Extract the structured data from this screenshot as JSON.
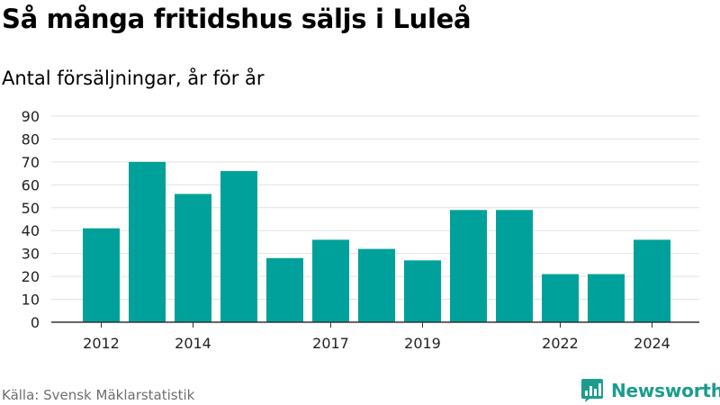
{
  "title": "Så många fritidshus säljs i Luleå",
  "subtitle": "Antal försäljningar, år för år",
  "source": "Källa: Svensk Mäklarstatistik",
  "brand": {
    "name": "Newsworthy",
    "icon": "newsworthy-logo-icon",
    "color": "#1b9d8c"
  },
  "chart_data": {
    "type": "bar",
    "categories": [
      "2012",
      "2013",
      "2014",
      "2015",
      "2016",
      "2017",
      "2018",
      "2019",
      "2020",
      "2021",
      "2022",
      "2023",
      "2024"
    ],
    "values": [
      41,
      70,
      56,
      66,
      28,
      36,
      32,
      27,
      49,
      49,
      21,
      21,
      36
    ],
    "tick_labels_x": [
      "2012",
      "",
      "2014",
      "",
      "",
      "2017",
      "",
      "2019",
      "",
      "",
      "2022",
      "",
      "2024"
    ],
    "yticks": [
      0,
      10,
      20,
      30,
      40,
      50,
      60,
      70,
      80,
      90
    ],
    "ylim": [
      0,
      90
    ],
    "bar_color": "#00a19a",
    "grid": true
  }
}
